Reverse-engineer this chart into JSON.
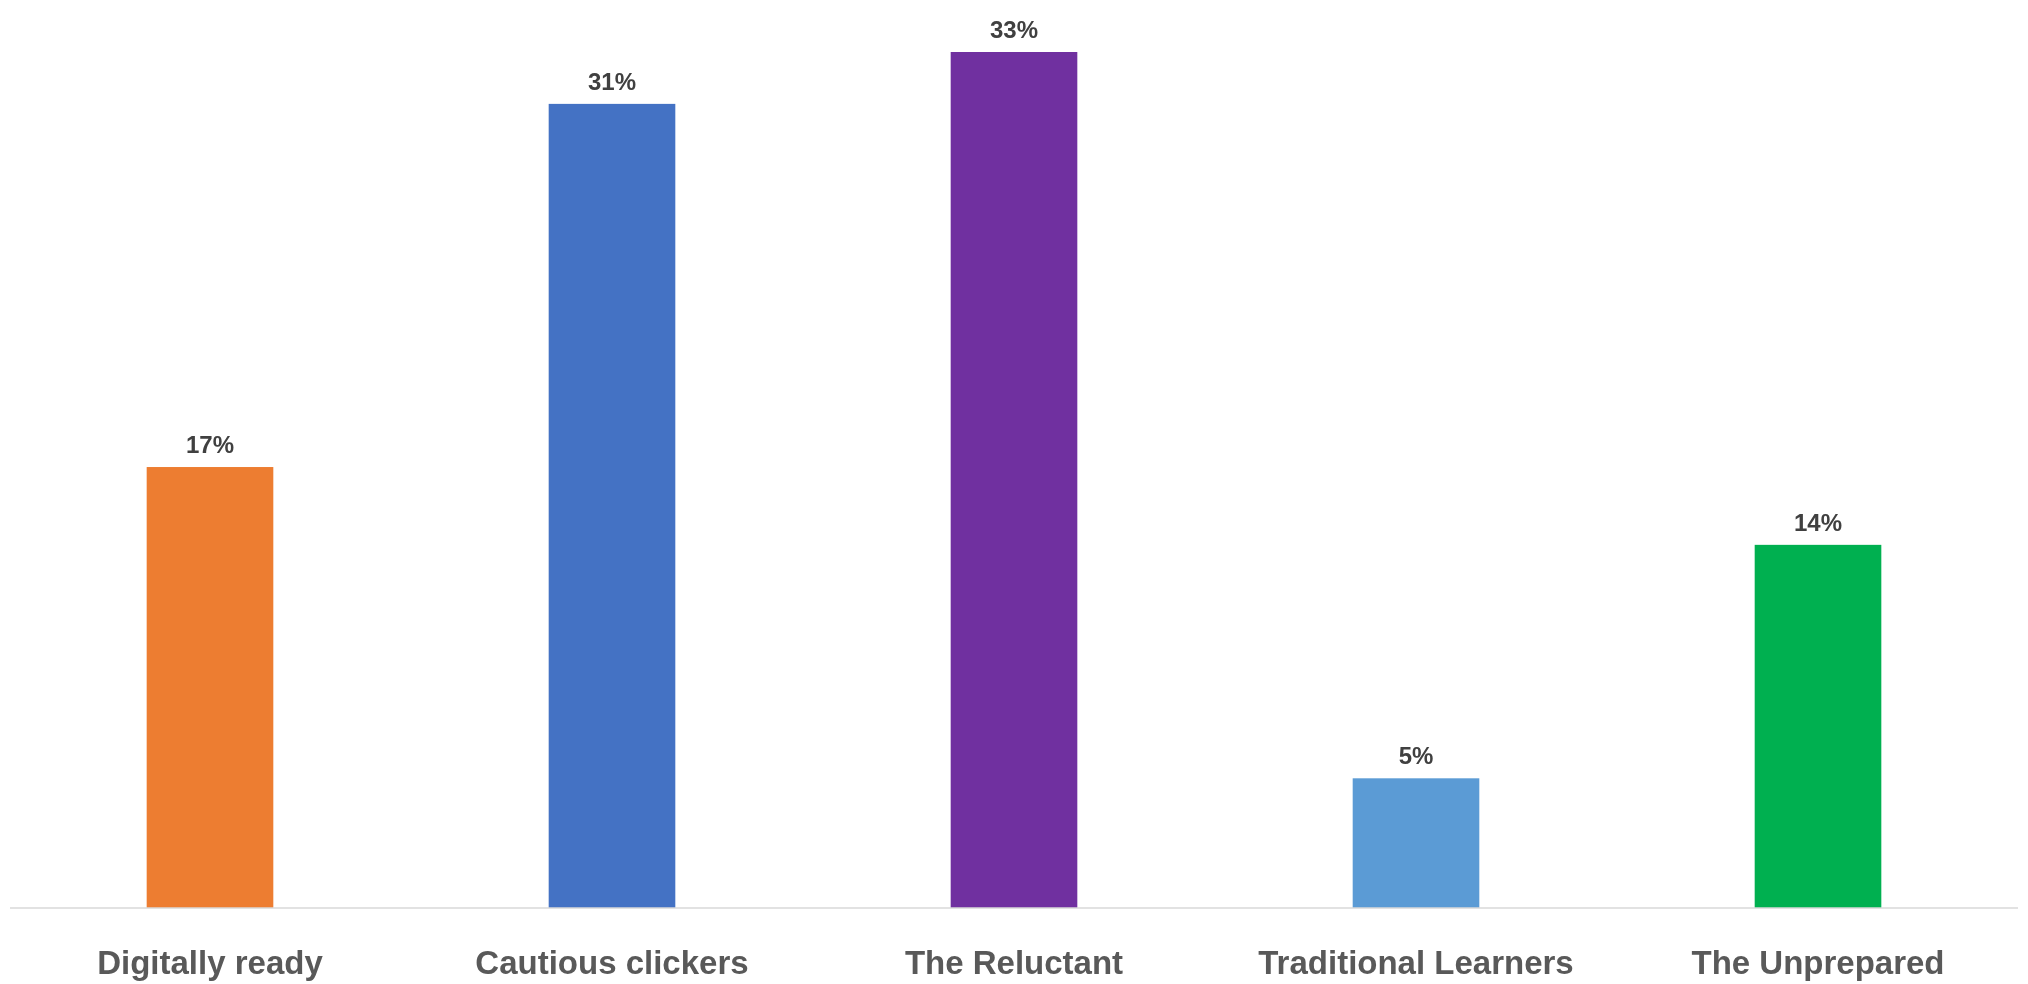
{
  "chart_data": {
    "type": "bar",
    "categories": [
      "Digitally ready",
      "Cautious clickers",
      "The Reluctant",
      "Traditional Learners",
      "The Unprepared"
    ],
    "values": [
      17,
      31,
      33,
      5,
      14
    ],
    "colors": [
      "#ed7d31",
      "#4472c4",
      "#7030a0",
      "#5b9bd5",
      "#00b050"
    ],
    "value_labels": [
      "17%",
      "31%",
      "33%",
      "5%",
      "14%"
    ]
  }
}
